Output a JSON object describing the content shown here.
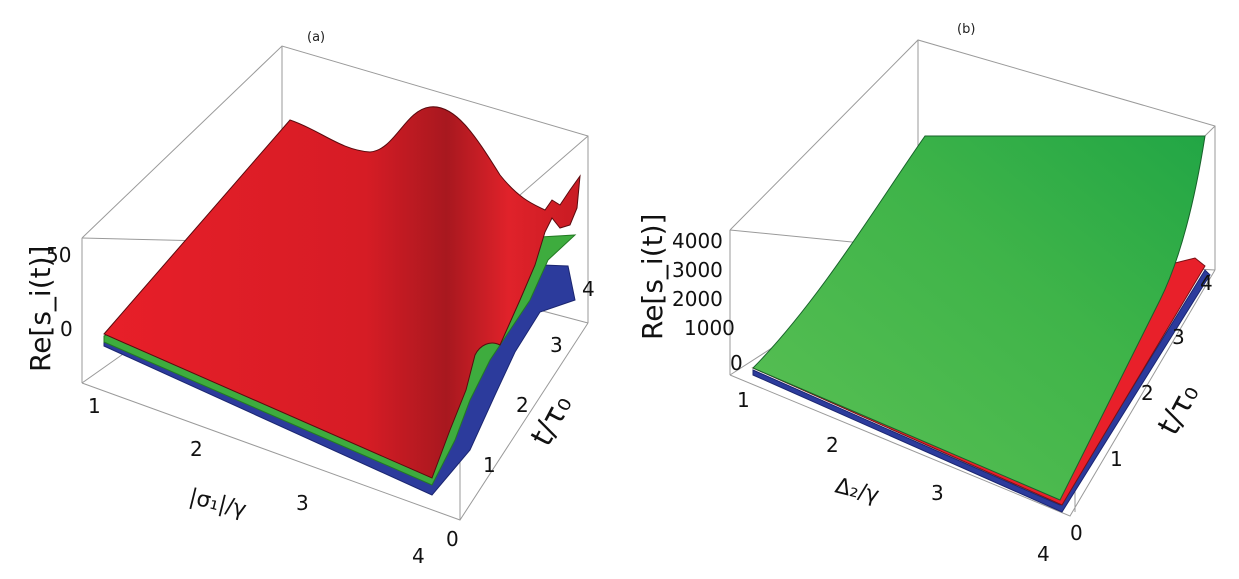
{
  "panels": [
    {
      "tag": "(a)",
      "zlabel": "Re[s_i(t)]",
      "xlabel": "|σ₁|/γ",
      "ylabel": "t/τ₀"
    },
    {
      "tag": "(b)",
      "zlabel": "Re[s_i(t)]",
      "xlabel": "Δ₂/γ",
      "ylabel": "t/τ₀"
    }
  ],
  "chart_data": [
    {
      "type": "surface",
      "panel": "(a)",
      "zlabel": "Re[s_i(t)]",
      "xlabel": "|σ₁|/γ",
      "ylabel": "t/τ₀",
      "x_ticks": [
        "1",
        "2",
        "3",
        "4"
      ],
      "y_ticks": [
        "0",
        "1",
        "2",
        "3",
        "4"
      ],
      "z_ticks": [
        "0",
        "50"
      ],
      "xlim": [
        1,
        4
      ],
      "ylim": [
        0,
        4
      ],
      "series": [
        {
          "color": "#e8202a",
          "description_values": {
            "x": [
              1,
              2,
              3,
              4
            ],
            "peak_z": [
              0,
              10,
              40,
              75
            ]
          }
        },
        {
          "color": "#3fae3f",
          "description_values": {
            "x": [
              1,
              2,
              3,
              4
            ],
            "peak_z": [
              0,
              2,
              8,
              20
            ]
          }
        },
        {
          "color": "#2a3a9e",
          "description_values": {
            "x": [
              1,
              2,
              3,
              4
            ],
            "peak_z": [
              -2,
              -2,
              -2,
              5
            ]
          }
        }
      ]
    },
    {
      "type": "surface",
      "panel": "(b)",
      "zlabel": "Re[s_i(t)]",
      "xlabel": "Δ₂/γ",
      "ylabel": "t/τ₀",
      "x_ticks": [
        "1",
        "2",
        "3",
        "4"
      ],
      "y_ticks": [
        "0",
        "1",
        "2",
        "3",
        "4"
      ],
      "z_ticks": [
        "0",
        "1000",
        "2000",
        "3000",
        "4000"
      ],
      "xlim": [
        1,
        4
      ],
      "ylim": [
        0,
        4
      ],
      "series": [
        {
          "color": "#3db84a",
          "description_values": {
            "x": [
              1,
              2,
              3,
              4
            ],
            "z_at_tmax": [
              0,
              1200,
              2600,
              4000
            ]
          }
        },
        {
          "color": "#e8202a",
          "description_values": {
            "x": [
              1,
              2,
              3,
              4
            ],
            "z_at_tmax": [
              0,
              300,
              800,
              1500
            ]
          }
        },
        {
          "color": "#2a3a9e",
          "description_values": {
            "x": [
              1,
              2,
              3,
              4
            ],
            "z_at_tmax": [
              0,
              0,
              0,
              0
            ]
          }
        }
      ]
    }
  ]
}
